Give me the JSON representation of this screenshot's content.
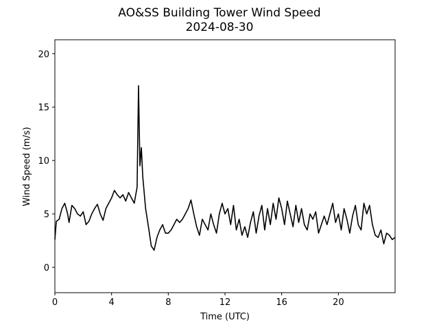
{
  "chart_data": {
    "type": "line",
    "title": "AO&SS Building Tower Wind Speed",
    "subtitle": "2024-08-30",
    "xlabel": "Time (UTC)",
    "ylabel": "Wind Speed (m/s)",
    "color": "#000000",
    "x": [
      0,
      0.1,
      0.3,
      0.5,
      0.7,
      0.9,
      1.0,
      1.2,
      1.4,
      1.6,
      1.8,
      2.0,
      2.2,
      2.4,
      2.6,
      2.8,
      3.0,
      3.2,
      3.4,
      3.6,
      3.8,
      4.0,
      4.2,
      4.4,
      4.6,
      4.8,
      5.0,
      5.2,
      5.4,
      5.6,
      5.8,
      5.9,
      6.0,
      6.1,
      6.2,
      6.4,
      6.6,
      6.8,
      7.0,
      7.2,
      7.4,
      7.6,
      7.8,
      8.0,
      8.2,
      8.4,
      8.6,
      8.8,
      9.0,
      9.2,
      9.4,
      9.6,
      9.8,
      10.0,
      10.2,
      10.4,
      10.6,
      10.8,
      11.0,
      11.2,
      11.4,
      11.6,
      11.8,
      12.0,
      12.2,
      12.4,
      12.6,
      12.8,
      13.0,
      13.2,
      13.4,
      13.6,
      13.8,
      14.0,
      14.2,
      14.4,
      14.6,
      14.8,
      15.0,
      15.2,
      15.4,
      15.6,
      15.8,
      16.0,
      16.2,
      16.4,
      16.6,
      16.8,
      17.0,
      17.2,
      17.4,
      17.6,
      17.8,
      18.0,
      18.2,
      18.4,
      18.6,
      18.8,
      19.0,
      19.2,
      19.4,
      19.6,
      19.8,
      20.0,
      20.2,
      20.4,
      20.6,
      20.8,
      21.0,
      21.2,
      21.4,
      21.6,
      21.8,
      22.0,
      22.2,
      22.4,
      22.6,
      22.8,
      23.0,
      23.2,
      23.4,
      23.6,
      23.8,
      24.0
    ],
    "values": [
      2.6,
      4.3,
      4.5,
      5.5,
      6.0,
      5.0,
      4.2,
      5.8,
      5.5,
      5.0,
      4.8,
      5.2,
      4.0,
      4.3,
      5.0,
      5.5,
      5.9,
      5.0,
      4.4,
      5.5,
      6.0,
      6.5,
      7.2,
      6.8,
      6.5,
      6.8,
      6.2,
      7.0,
      6.5,
      6.0,
      7.5,
      17.0,
      9.5,
      11.2,
      8.5,
      5.5,
      3.8,
      2.0,
      1.6,
      2.8,
      3.5,
      4.0,
      3.2,
      3.2,
      3.5,
      4.0,
      4.5,
      4.2,
      4.5,
      5.0,
      5.5,
      6.3,
      5.0,
      3.8,
      3.0,
      4.5,
      4.0,
      3.5,
      5.0,
      4.0,
      3.2,
      5.0,
      6.0,
      5.0,
      5.5,
      4.0,
      5.8,
      3.5,
      4.5,
      3.0,
      3.8,
      2.8,
      4.2,
      5.2,
      3.2,
      4.8,
      5.8,
      3.5,
      5.5,
      4.0,
      6.0,
      4.5,
      6.5,
      5.5,
      4.0,
      6.2,
      5.0,
      3.8,
      5.8,
      4.2,
      5.5,
      4.0,
      3.5,
      5.0,
      4.5,
      5.2,
      3.2,
      4.0,
      4.8,
      4.0,
      5.0,
      6.0,
      4.2,
      5.0,
      3.5,
      5.5,
      4.5,
      3.2,
      4.8,
      5.8,
      4.0,
      3.5,
      6.0,
      5.0,
      5.8,
      4.0,
      3.0,
      2.8,
      3.5,
      2.2,
      3.2,
      3.0,
      2.6,
      2.8
    ],
    "xlim": [
      0,
      24
    ],
    "ylim": [
      -2.37,
      21.3
    ],
    "xticks": [
      0,
      4,
      8,
      12,
      16,
      20
    ],
    "yticks": [
      0,
      5,
      10,
      15,
      20
    ]
  }
}
